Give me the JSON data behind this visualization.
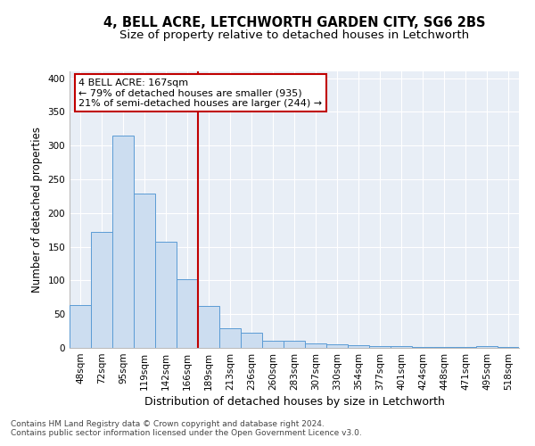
{
  "title": "4, BELL ACRE, LETCHWORTH GARDEN CITY, SG6 2BS",
  "subtitle": "Size of property relative to detached houses in Letchworth",
  "xlabel": "Distribution of detached houses by size in Letchworth",
  "ylabel": "Number of detached properties",
  "categories": [
    "48sqm",
    "72sqm",
    "95sqm",
    "119sqm",
    "142sqm",
    "166sqm",
    "189sqm",
    "213sqm",
    "236sqm",
    "260sqm",
    "283sqm",
    "307sqm",
    "330sqm",
    "354sqm",
    "377sqm",
    "401sqm",
    "424sqm",
    "448sqm",
    "471sqm",
    "495sqm",
    "518sqm"
  ],
  "values": [
    63,
    172,
    315,
    229,
    157,
    102,
    62,
    29,
    22,
    10,
    10,
    7,
    5,
    4,
    2,
    2,
    1,
    1,
    1,
    2,
    1
  ],
  "bar_color": "#ccddf0",
  "bar_edge_color": "#5b9bd5",
  "vline_x_index": 5,
  "vline_color": "#c00000",
  "annotation_line1": "4 BELL ACRE: 167sqm",
  "annotation_line2": "← 79% of detached houses are smaller (935)",
  "annotation_line3": "21% of semi-detached houses are larger (244) →",
  "annotation_box_color": "#ffffff",
  "annotation_box_edge": "#c00000",
  "ylim": [
    0,
    410
  ],
  "yticks": [
    0,
    50,
    100,
    150,
    200,
    250,
    300,
    350,
    400
  ],
  "footer1": "Contains HM Land Registry data © Crown copyright and database right 2024.",
  "footer2": "Contains public sector information licensed under the Open Government Licence v3.0.",
  "bg_color": "#e8eef6",
  "grid_color": "#ffffff",
  "title_fontsize": 10.5,
  "subtitle_fontsize": 9.5,
  "xlabel_fontsize": 9,
  "ylabel_fontsize": 8.5,
  "tick_fontsize": 7.5,
  "footer_fontsize": 6.5,
  "annot_fontsize": 8
}
